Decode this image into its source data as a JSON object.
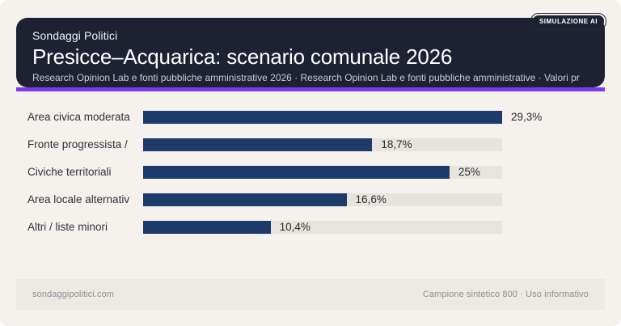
{
  "page": {
    "background": "#f5f1ec"
  },
  "header": {
    "badge_label": "SIMULAZIONE AI",
    "kicker": "Sondaggi Politici",
    "title": "Presicce–Acquarica: scenario comunale 2026",
    "subtitle": "Research Opinion Lab e fonti pubbliche amministrative 2026 · Research Opinion Lab e fonti pubbliche amministrative · Valori pr",
    "card_color": "#1e2132",
    "accent_color": "#7c3aed"
  },
  "chart_data": {
    "type": "bar",
    "orientation": "horizontal",
    "title": "Presicce–Acquarica: scenario comunale 2026",
    "categories": [
      "Area civica moderata",
      "Fronte progressista /",
      "Civiche territoriali",
      "Area locale alternativ",
      "Altri / liste minori"
    ],
    "values": [
      29.3,
      18.7,
      25,
      16.6,
      10.4
    ],
    "value_labels": [
      "29,3%",
      "18,7%",
      "25%",
      "16,6%",
      "10,4%"
    ],
    "xlim": [
      0,
      29.3
    ],
    "grid": false,
    "legend": false,
    "bar_color": "#1e3a6b",
    "track_color": "#e7e4de",
    "value_text_color": "#2a2d37",
    "label_text_color": "#2e323c"
  },
  "footer": {
    "left": "sondaggipolitici.com",
    "right": "Campione sintetico 800 · Uso informativo"
  }
}
